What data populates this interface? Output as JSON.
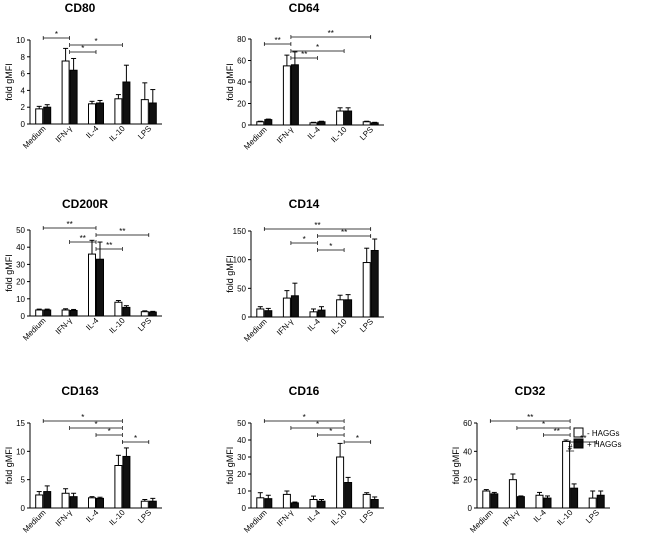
{
  "legend": {
    "entries": [
      {
        "name": "- HAGGs",
        "fill": "#ffffff"
      },
      {
        "name": "+ HAGGs",
        "fill": "#111111"
      }
    ]
  },
  "chart_data": [
    {
      "type": "bar",
      "title": "CD80",
      "ylabel": "fold gMFI",
      "categories": [
        "Medium",
        "IFN-γ",
        "IL-4",
        "IL-10",
        "LPS"
      ],
      "ylim": [
        0,
        10
      ],
      "yticks": [
        0,
        2,
        4,
        6,
        8,
        10
      ],
      "series": [
        {
          "name": "- HAGGs",
          "values": [
            1.8,
            7.5,
            2.4,
            3.0,
            2.9
          ],
          "errors": [
            0.3,
            1.5,
            0.3,
            0.5,
            2.0
          ]
        },
        {
          "name": "+ HAGGs",
          "values": [
            2.0,
            6.4,
            2.5,
            5.0,
            2.5
          ],
          "errors": [
            0.3,
            1.4,
            0.3,
            2.0,
            1.6
          ]
        }
      ],
      "significance": [
        {
          "from": 0,
          "to": 1,
          "label": "*"
        },
        {
          "from": 1,
          "to": 3,
          "label": "*"
        },
        {
          "from": 1,
          "to": 2,
          "label": "*"
        }
      ]
    },
    {
      "type": "bar",
      "title": "CD64",
      "ylabel": "fold gMFI",
      "categories": [
        "Medium",
        "IFN-γ",
        "IL-4",
        "IL-10",
        "LPS"
      ],
      "ylim": [
        0,
        80
      ],
      "yticks": [
        0,
        20,
        40,
        60,
        80
      ],
      "series": [
        {
          "name": "- HAGGs",
          "values": [
            3,
            55,
            2,
            13,
            3
          ],
          "errors": [
            0.5,
            10,
            0.5,
            3,
            0.5
          ]
        },
        {
          "name": "+ HAGGs",
          "values": [
            5,
            56,
            3,
            13,
            2
          ],
          "errors": [
            0.5,
            12,
            0.5,
            3,
            0.5
          ]
        }
      ],
      "significance": [
        {
          "from": 1,
          "to": 4,
          "label": "**"
        },
        {
          "from": 0,
          "to": 1,
          "label": "**"
        },
        {
          "from": 1,
          "to": 3,
          "label": "*"
        },
        {
          "from": 1,
          "to": 2,
          "label": "**"
        }
      ]
    },
    {
      "type": "bar",
      "title": "CD200R",
      "ylabel": "fold gMFI",
      "categories": [
        "Medium",
        "IFN-γ",
        "IL-4",
        "IL-10",
        "LPS"
      ],
      "ylim": [
        0,
        50
      ],
      "yticks": [
        0,
        10,
        20,
        30,
        40,
        50
      ],
      "series": [
        {
          "name": "- HAGGs",
          "values": [
            3.5,
            3.5,
            36,
            8,
            2.5
          ],
          "errors": [
            0.5,
            0.7,
            8,
            1,
            0.5
          ]
        },
        {
          "name": "+ HAGGs",
          "values": [
            3.5,
            3.2,
            33,
            5,
            2.3
          ],
          "errors": [
            0.5,
            0.6,
            10,
            1,
            0.4
          ]
        }
      ],
      "significance": [
        {
          "from": 0,
          "to": 2,
          "label": "**"
        },
        {
          "from": 2,
          "to": 4,
          "label": "**"
        },
        {
          "from": 1,
          "to": 2,
          "label": "**"
        },
        {
          "from": 2,
          "to": 3,
          "label": "**"
        }
      ]
    },
    {
      "type": "bar",
      "title": "CD14",
      "ylabel": "fold gMFI",
      "categories": [
        "Medium",
        "IFN-γ",
        "IL-4",
        "IL-10",
        "LPS"
      ],
      "ylim": [
        0,
        150
      ],
      "yticks": [
        0,
        50,
        100,
        150
      ],
      "series": [
        {
          "name": "- HAGGs",
          "values": [
            14,
            33,
            9,
            30,
            95
          ],
          "errors": [
            4,
            13,
            5,
            8,
            25
          ]
        },
        {
          "name": "+ HAGGs",
          "values": [
            11,
            37,
            12,
            30,
            116
          ],
          "errors": [
            4,
            22,
            6,
            9,
            20
          ]
        }
      ],
      "significance": [
        {
          "from": 0,
          "to": 4,
          "label": "**"
        },
        {
          "from": 2,
          "to": 4,
          "label": "**"
        },
        {
          "from": 1,
          "to": 2,
          "label": "*"
        },
        {
          "from": 2,
          "to": 3,
          "label": "*"
        }
      ]
    },
    {
      "type": "bar",
      "title": "CD163",
      "ylabel": "fold gMFI",
      "categories": [
        "Medium",
        "IFN-γ",
        "IL-4",
        "IL-10",
        "LPS"
      ],
      "ylim": [
        0,
        15
      ],
      "yticks": [
        0,
        5,
        10,
        15
      ],
      "series": [
        {
          "name": "- HAGGs",
          "values": [
            2.3,
            2.6,
            1.8,
            7.5,
            1.2
          ],
          "errors": [
            0.6,
            0.8,
            0.2,
            1.8,
            0.3
          ]
        },
        {
          "name": "+ HAGGs",
          "values": [
            2.9,
            2.0,
            1.7,
            9.1,
            1.2
          ],
          "errors": [
            1.0,
            0.6,
            0.2,
            1.5,
            0.5
          ]
        }
      ],
      "significance": [
        {
          "from": 0,
          "to": 3,
          "label": "*"
        },
        {
          "from": 1,
          "to": 3,
          "label": "*"
        },
        {
          "from": 2,
          "to": 3,
          "label": "*"
        },
        {
          "from": 3,
          "to": 4,
          "label": "*"
        }
      ]
    },
    {
      "type": "bar",
      "title": "CD16",
      "ylabel": "fold gMFI",
      "categories": [
        "Medium",
        "IFN-γ",
        "IL-4",
        "IL-10",
        "LPS"
      ],
      "ylim": [
        0,
        50
      ],
      "yticks": [
        0,
        10,
        20,
        30,
        40,
        50
      ],
      "series": [
        {
          "name": "- HAGGs",
          "values": [
            6,
            8,
            5,
            30,
            8
          ],
          "errors": [
            3,
            2,
            2,
            8,
            1
          ]
        },
        {
          "name": "+ HAGGs",
          "values": [
            5.5,
            3,
            4,
            15,
            5
          ],
          "errors": [
            2,
            0.5,
            1,
            3,
            1.5
          ]
        }
      ],
      "significance": [
        {
          "from": 0,
          "to": 3,
          "label": "*"
        },
        {
          "from": 1,
          "to": 3,
          "label": "*"
        },
        {
          "from": 2,
          "to": 3,
          "label": "*"
        },
        {
          "from": 3,
          "to": 4,
          "label": "*"
        }
      ]
    },
    {
      "type": "bar",
      "title": "CD32",
      "ylabel": "fold gMFI",
      "categories": [
        "Medium",
        "IFN-γ",
        "IL-4",
        "IL-10",
        "LPS"
      ],
      "ylim": [
        0,
        60
      ],
      "yticks": [
        0,
        20,
        40,
        60
      ],
      "series": [
        {
          "name": "- HAGGs",
          "values": [
            12,
            20,
            9,
            47,
            7
          ],
          "errors": [
            1,
            4,
            2,
            1,
            5
          ]
        },
        {
          "name": "+ HAGGs",
          "values": [
            10,
            8,
            7,
            14,
            9
          ],
          "errors": [
            1,
            0.5,
            1.5,
            3,
            3
          ]
        }
      ],
      "significance": [
        {
          "from": 0,
          "to": 3,
          "label": "**"
        },
        {
          "from": 1,
          "to": 3,
          "label": "*"
        },
        {
          "from": 2,
          "to": 3,
          "label": "**"
        },
        {
          "from": 3,
          "to": 4,
          "label": "**"
        }
      ],
      "pair_significance": [
        {
          "index": 3,
          "label": "#"
        }
      ]
    }
  ]
}
